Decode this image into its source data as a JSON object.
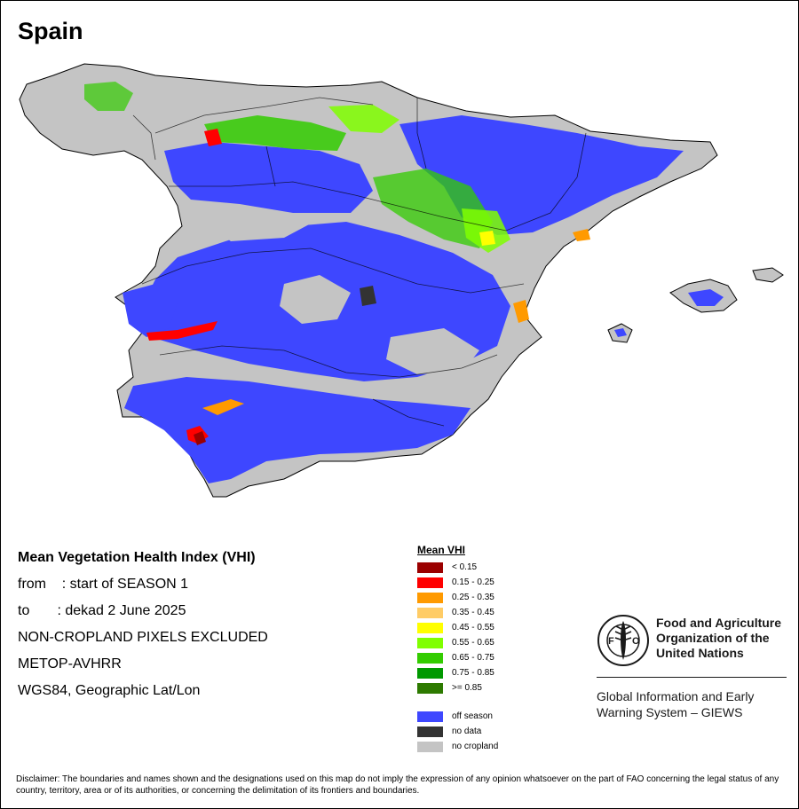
{
  "map": {
    "title": "Spain"
  },
  "info": {
    "heading": "Mean Vegetation Health Index (VHI)",
    "from_line": "from    : start of SEASON 1",
    "to_line": "to       : dekad 2 June 2025",
    "exclusion_note": "NON-CROPLAND PIXELS EXCLUDED",
    "sensor": "METOP-AVHRR",
    "projection": "WGS84, Geographic Lat/Lon"
  },
  "legend": {
    "title": "Mean VHI",
    "classes": [
      {
        "label": "< 0.15",
        "color": "#9b0000"
      },
      {
        "label": "0.15 - 0.25",
        "color": "#ff0000"
      },
      {
        "label": "0.25 - 0.35",
        "color": "#ff9a00"
      },
      {
        "label": "0.35 - 0.45",
        "color": "#ffcc66"
      },
      {
        "label": "0.45 - 0.55",
        "color": "#ffff00"
      },
      {
        "label": "0.55 - 0.65",
        "color": "#80ff00"
      },
      {
        "label": "0.65 - 0.75",
        "color": "#33cc00"
      },
      {
        "label": "0.75 - 0.85",
        "color": "#009900"
      },
      {
        "label": ">= 0.85",
        "color": "#2d7a00"
      }
    ],
    "extra_classes": [
      {
        "label": "off season",
        "color": "#3e47ff"
      },
      {
        "label": "no data",
        "color": "#333333"
      },
      {
        "label": "no cropland",
        "color": "#c4c4c4"
      }
    ]
  },
  "organization": {
    "logo_text": "FAO",
    "logo_motto": "FIAT PANIS",
    "name_line1": "Food and Agriculture",
    "name_line2": "Organization of the",
    "name_line3": "United Nations",
    "program_line1": "Global Information and Early",
    "program_line2": "Warning System – GIEWS"
  },
  "disclaimer": {
    "text": "Disclaimer: The boundaries and names shown and the designations used on this map do not imply the expression of any opinion whatsoever on the part of FAO concerning the legal status of any country, territory, area or of its authorities, or concerning the delimitation of its frontiers and boundaries."
  }
}
